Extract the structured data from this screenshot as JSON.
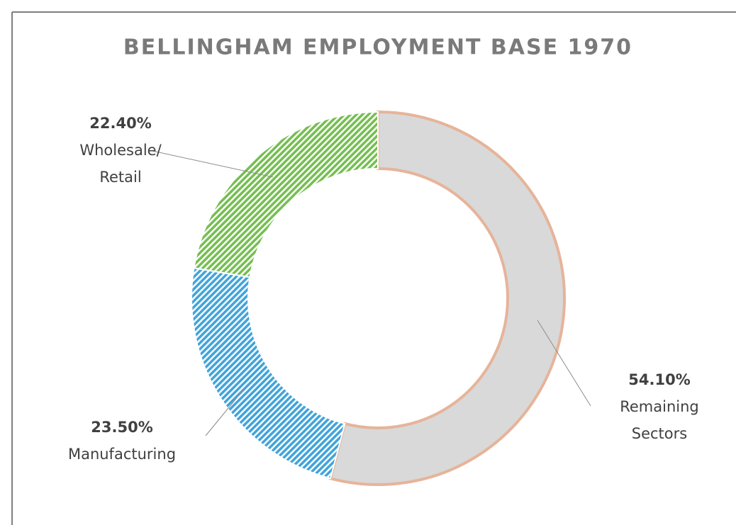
{
  "chart_data": {
    "type": "donut",
    "title": "BELLINGHAM EMPLOYMENT BASE 1970",
    "categories": [
      "Remaining Sectors",
      "Manufacturing",
      "Wholesale/ Retail"
    ],
    "values": [
      54.1,
      23.5,
      22.4
    ],
    "value_labels": [
      "54.10%",
      "23.50%",
      "22.40%"
    ],
    "colors": [
      "#d9d9d9",
      "#3fa4dc",
      "#74bf4f"
    ]
  }
}
